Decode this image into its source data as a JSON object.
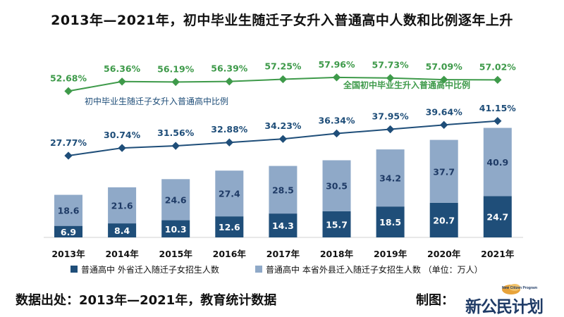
{
  "title": "2013年—2021年，初中毕业生随迁子女升入普通高中人数和比例逐年上升",
  "chart_data": {
    "type": "bar",
    "unit_note": "（单位：万人）",
    "categories": [
      "2013年",
      "2014年",
      "2015年",
      "2016年",
      "2017年",
      "2018年",
      "2019年",
      "2020年",
      "2021年"
    ],
    "bar_series": [
      {
        "name": "普通高中 外省迁入随迁子女招生人数",
        "color": "#1f4e79",
        "values": [
          6.9,
          8.4,
          10.3,
          12.6,
          14.3,
          15.7,
          18.5,
          20.7,
          24.7
        ]
      },
      {
        "name": "普通高中 本省外县迁入随迁子女招生人数",
        "color": "#8fa9c8",
        "values": [
          18.6,
          21.6,
          24.6,
          27.4,
          28.5,
          30.5,
          34.2,
          37.7,
          40.9
        ]
      }
    ],
    "bar_labels": {
      "series_0": [
        "6.9",
        "8.4",
        "10.3",
        "12.6",
        "14.3",
        "15.7",
        "18.5",
        "20.7",
        "24.7"
      ],
      "series_1": [
        "18.6",
        "21.6",
        "24.6",
        "27.4",
        "28.5",
        "30.5",
        "34.2",
        "37.7",
        "40.9"
      ]
    },
    "line_series": [
      {
        "name": "全国初中毕业生升入普通高中比例",
        "color": "#3e9a4a",
        "values": [
          52.68,
          56.36,
          56.19,
          56.39,
          57.25,
          57.96,
          57.73,
          57.09,
          57.02
        ],
        "labels": [
          "52.68%",
          "56.36%",
          "56.19%",
          "56.39%",
          "57.25%",
          "57.96%",
          "57.73%",
          "57.09%",
          "57.02%"
        ]
      },
      {
        "name": "初中毕业生随迁子女升入普通高中比例",
        "color": "#1f4e79",
        "values": [
          27.77,
          30.74,
          31.56,
          32.88,
          34.23,
          36.34,
          37.95,
          39.64,
          41.15
        ],
        "labels": [
          "27.77%",
          "30.74%",
          "31.56%",
          "32.88%",
          "34.23%",
          "36.34%",
          "37.95%",
          "39.64%",
          "41.15%"
        ]
      }
    ]
  },
  "footer": {
    "source": "数据出处：2013年—2021年，教育统计数据",
    "credit": "制图：",
    "logo_text": "新公民计划",
    "logo_sub": "New Citizen Program"
  }
}
